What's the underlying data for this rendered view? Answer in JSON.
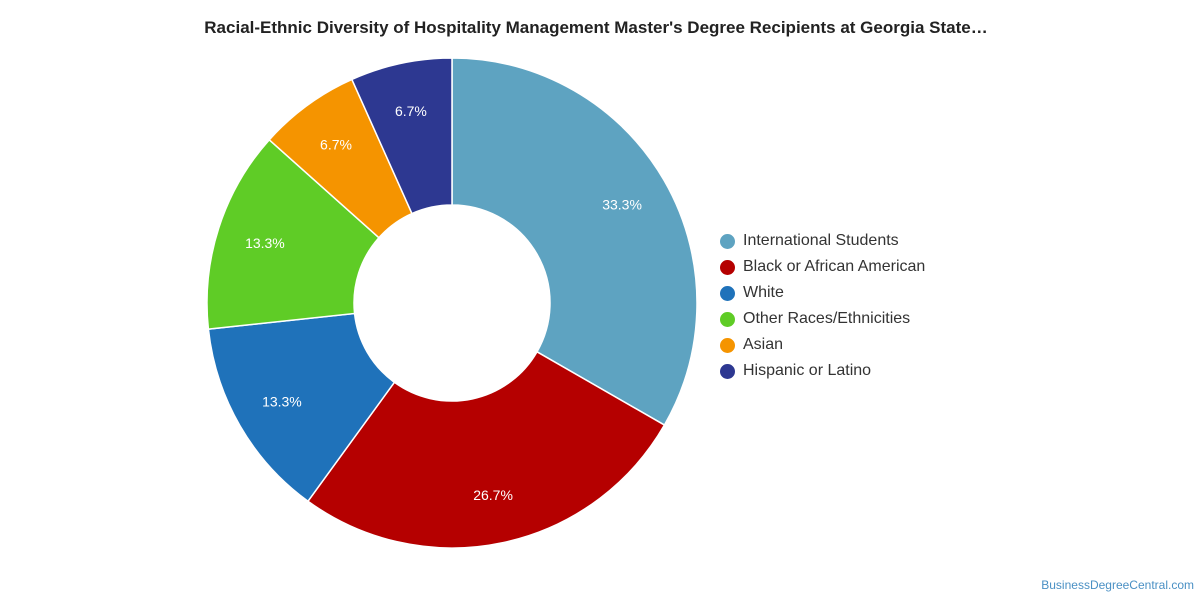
{
  "chart_data": {
    "type": "pie",
    "variant": "donut",
    "title": "Racial-Ethnic Diversity of Hospitality Management Master's Degree Recipients at Georgia State…",
    "categories": [
      "International Students",
      "Black or African American",
      "White",
      "Other Races/Ethnicities",
      "Asian",
      "Hispanic or Latino"
    ],
    "values": [
      33.3,
      26.7,
      13.3,
      13.3,
      6.7,
      6.7
    ],
    "value_labels": [
      "33.3%",
      "26.7%",
      "13.3%",
      "13.3%",
      "6.7%",
      "6.7%"
    ],
    "colors": [
      "#5ea3c1",
      "#b50000",
      "#1f72ba",
      "#5fcc26",
      "#f59400",
      "#2d3891"
    ],
    "legend_position": "right"
  },
  "credit": "BusinessDegreeCentral.com"
}
